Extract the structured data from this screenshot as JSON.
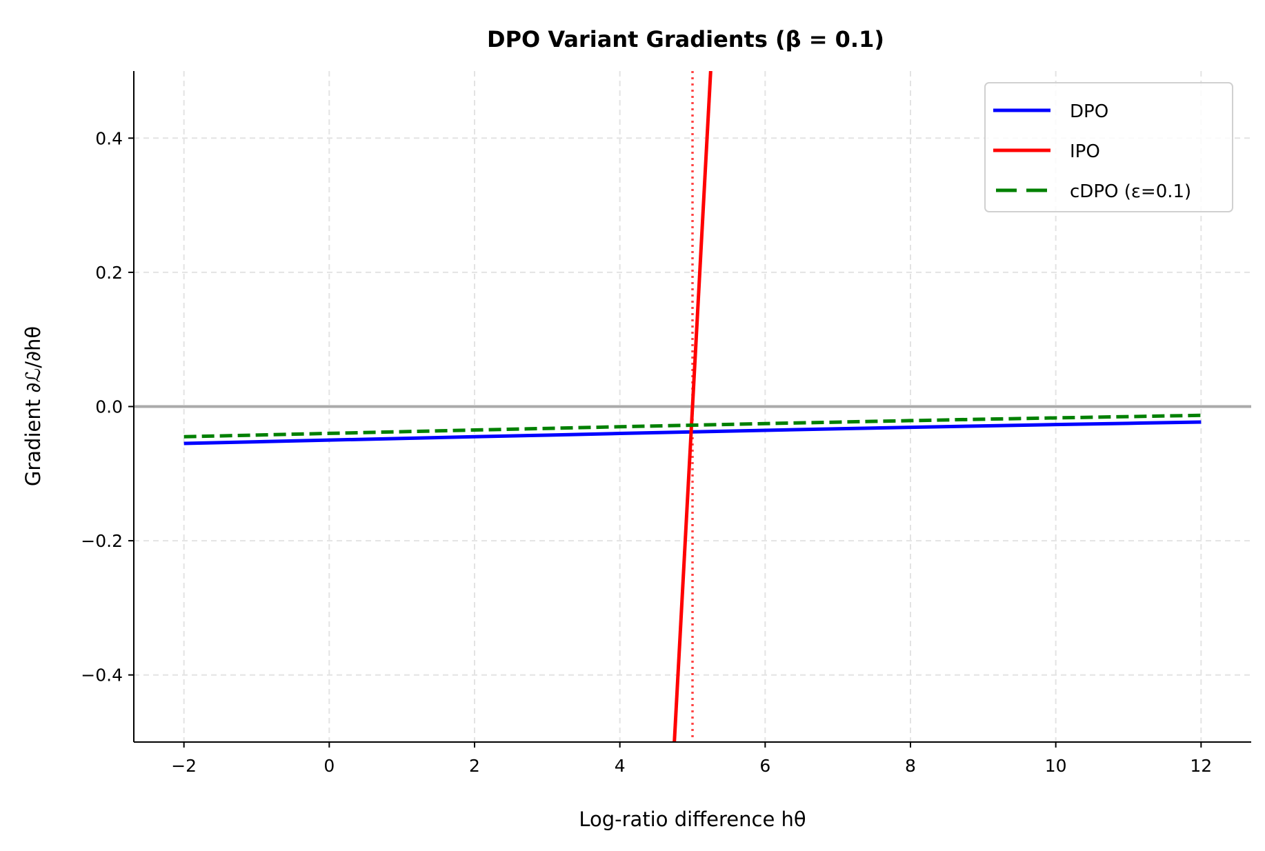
{
  "chart_data": {
    "type": "line",
    "title": "DPO Variant Gradients (β = 0.1)",
    "xlabel": "Log-ratio difference hθ",
    "ylabel": "Gradient ∂ℒ/∂hθ",
    "xlim": [
      -2.69,
      12.69
    ],
    "ylim": [
      -0.5,
      0.5
    ],
    "xticks": [
      -2,
      0,
      2,
      4,
      6,
      8,
      10,
      12
    ],
    "xtick_labels": [
      "−2",
      "0",
      "2",
      "4",
      "6",
      "8",
      "10",
      "12"
    ],
    "yticks": [
      -0.4,
      -0.2,
      0.0,
      0.2,
      0.4
    ],
    "ytick_labels": [
      "−0.4",
      "−0.2",
      "0.0",
      "0.2",
      "0.4"
    ],
    "grid": true,
    "legend_position": "top-right",
    "x": [
      -2,
      -1,
      0,
      1,
      2,
      3,
      4,
      5,
      6,
      7,
      8,
      9,
      10,
      11,
      12
    ],
    "series": [
      {
        "name": "DPO",
        "color": "#0000ff",
        "style": "solid",
        "values": [
          -0.055,
          -0.0525,
          -0.05,
          -0.0475,
          -0.045,
          -0.0426,
          -0.0401,
          -0.0378,
          -0.0354,
          -0.0332,
          -0.031,
          -0.0289,
          -0.0269,
          -0.025,
          -0.0231
        ]
      },
      {
        "name": "IPO",
        "color": "#ff0000",
        "style": "solid",
        "values": [
          -14,
          -12,
          -10,
          -8,
          -6,
          -4,
          -2,
          0,
          2,
          4,
          6,
          8,
          10,
          12,
          14
        ]
      },
      {
        "name": "cDPO (ε=0.1)",
        "color": "#008000",
        "style": "dashed",
        "values": [
          -0.045,
          -0.0425,
          -0.04,
          -0.0375,
          -0.035,
          -0.0326,
          -0.0301,
          -0.0278,
          -0.0254,
          -0.0232,
          -0.021,
          -0.0189,
          -0.0169,
          -0.015,
          -0.0131
        ]
      }
    ],
    "reference_lines": [
      {
        "orientation": "horizontal",
        "value": 0,
        "color": "#aaaaaa",
        "style": "solid"
      },
      {
        "orientation": "vertical",
        "value": 5,
        "color": "#ff4444",
        "style": "dotted"
      }
    ]
  }
}
